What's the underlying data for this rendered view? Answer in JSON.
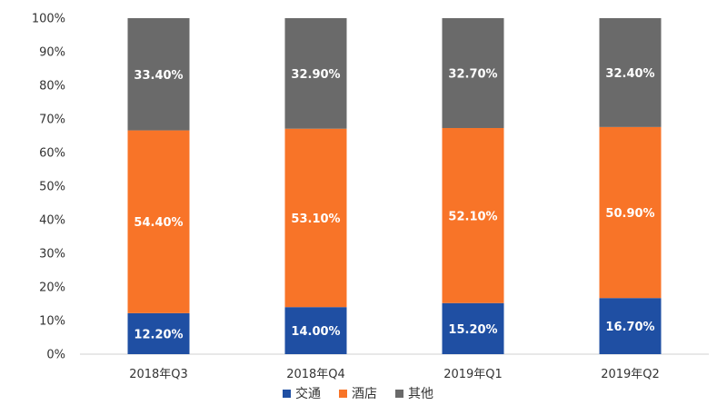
{
  "chart_data": {
    "type": "bar",
    "stacked": true,
    "categories": [
      "2018年Q3",
      "2018年Q4",
      "2019年Q1",
      "2019年Q2"
    ],
    "series": [
      {
        "name": "交通",
        "color": "#1f4fa3",
        "values": [
          12.2,
          14.0,
          15.2,
          16.7
        ],
        "labels": [
          "12.20%",
          "14.00%",
          "15.20%",
          "16.70%"
        ]
      },
      {
        "name": "酒店",
        "color": "#f87428",
        "values": [
          54.4,
          53.1,
          52.1,
          50.9
        ],
        "labels": [
          "54.40%",
          "53.10%",
          "52.10%",
          "50.90%"
        ]
      },
      {
        "name": "其他",
        "color": "#6a6a6a",
        "values": [
          33.4,
          32.9,
          32.7,
          32.4
        ],
        "labels": [
          "33.40%",
          "32.90%",
          "32.70%",
          "32.40%"
        ]
      }
    ],
    "ylim": [
      0,
      100
    ],
    "yticks": [
      "0%",
      "10%",
      "20%",
      "30%",
      "40%",
      "50%",
      "60%",
      "70%",
      "80%",
      "90%",
      "100%"
    ],
    "legend_position": "bottom",
    "grid": false
  }
}
